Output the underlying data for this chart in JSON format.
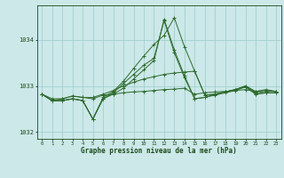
{
  "title": "Graphe pression niveau de la mer (hPa)",
  "xlabel_hours": [
    0,
    1,
    2,
    3,
    4,
    5,
    6,
    7,
    8,
    9,
    10,
    11,
    12,
    13,
    14,
    15,
    16,
    17,
    18,
    19,
    20,
    21,
    22,
    23
  ],
  "line1": [
    1032.82,
    1032.72,
    1032.72,
    1032.78,
    1032.75,
    1032.72,
    1032.8,
    1032.82,
    1032.85,
    1032.87,
    1032.88,
    1032.9,
    1032.92,
    1032.93,
    1032.95,
    1032.82,
    1032.85,
    1032.87,
    1032.88,
    1032.9,
    1032.92,
    1032.88,
    1032.9,
    1032.88
  ],
  "line2": [
    1032.82,
    1032.68,
    1032.68,
    1032.72,
    1032.68,
    1032.28,
    1032.75,
    1032.88,
    1033.1,
    1033.38,
    1033.65,
    1033.9,
    1034.1,
    1034.48,
    1033.85,
    1033.32,
    1032.8,
    1032.82,
    1032.87,
    1032.92,
    1033.0,
    1032.85,
    1032.88,
    1032.88
  ],
  "line3": [
    1032.82,
    1032.68,
    1032.68,
    1032.72,
    1032.68,
    1032.28,
    1032.72,
    1032.82,
    1032.95,
    1033.15,
    1033.35,
    1033.55,
    1034.45,
    1033.78,
    1033.22,
    1032.72,
    1032.75,
    1032.8,
    1032.85,
    1032.9,
    1032.98,
    1032.82,
    1032.85,
    1032.85
  ],
  "line4": [
    1032.82,
    1032.68,
    1032.68,
    1032.72,
    1032.68,
    1032.28,
    1032.72,
    1032.85,
    1033.05,
    1033.25,
    1033.45,
    1033.6,
    1034.42,
    1033.72,
    1033.18,
    1032.72,
    1032.75,
    1032.82,
    1032.87,
    1032.92,
    1032.98,
    1032.82,
    1032.85,
    1032.85
  ],
  "line5": [
    1032.82,
    1032.68,
    1032.72,
    1032.78,
    1032.75,
    1032.75,
    1032.82,
    1032.9,
    1033.0,
    1033.08,
    1033.15,
    1033.2,
    1033.25,
    1033.28,
    1033.3,
    1033.32,
    1032.8,
    1032.82,
    1032.87,
    1032.92,
    1033.0,
    1032.88,
    1032.92,
    1032.88
  ],
  "line_color": "#2d6a2d",
  "bg_color": "#cce8e8",
  "grid_color": "#99cccc",
  "text_color": "#1a4a1a",
  "ylim": [
    1031.85,
    1034.75
  ],
  "yticks": [
    1032,
    1033,
    1034
  ],
  "figsize": [
    3.2,
    2.0
  ],
  "dpi": 100
}
